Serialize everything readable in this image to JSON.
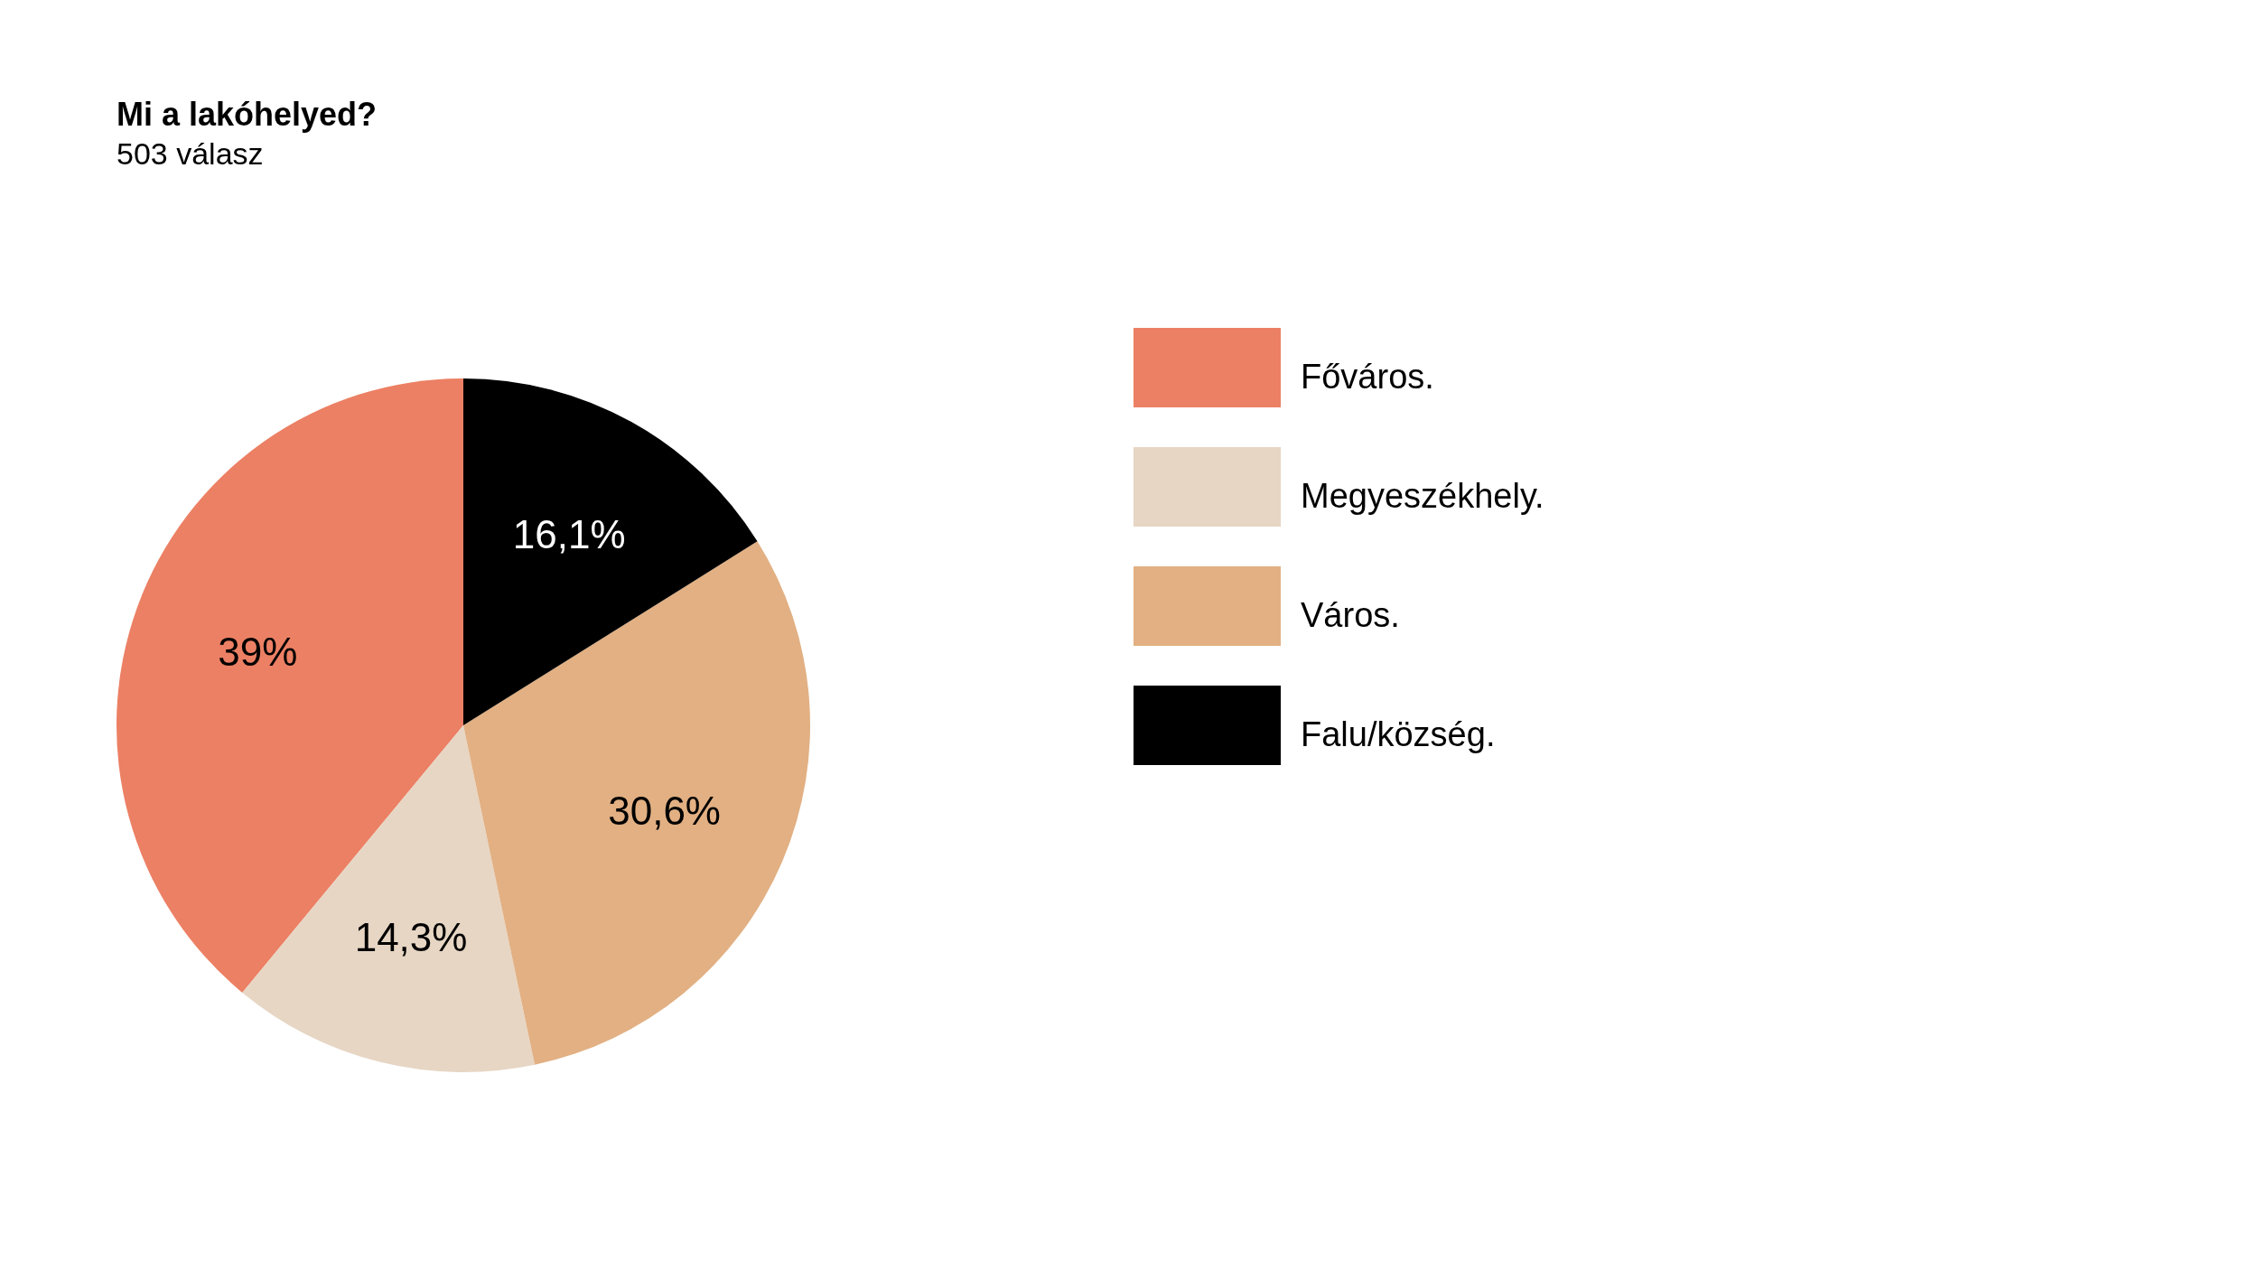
{
  "chart_data": {
    "type": "pie",
    "title": "Mi a lakóhelyed?",
    "subtitle": "503 válasz",
    "categories": [
      "Főváros.",
      "Megyeszékhely.",
      "Város.",
      "Falu/község."
    ],
    "values": [
      39,
      14.3,
      30.6,
      16.1
    ],
    "colors": [
      "#ec8064",
      "#e7d6c4",
      "#e2b083",
      "#000000"
    ],
    "value_labels": [
      "39%",
      "14,3%",
      "30,6%",
      "16,1%"
    ],
    "legend": "right"
  }
}
